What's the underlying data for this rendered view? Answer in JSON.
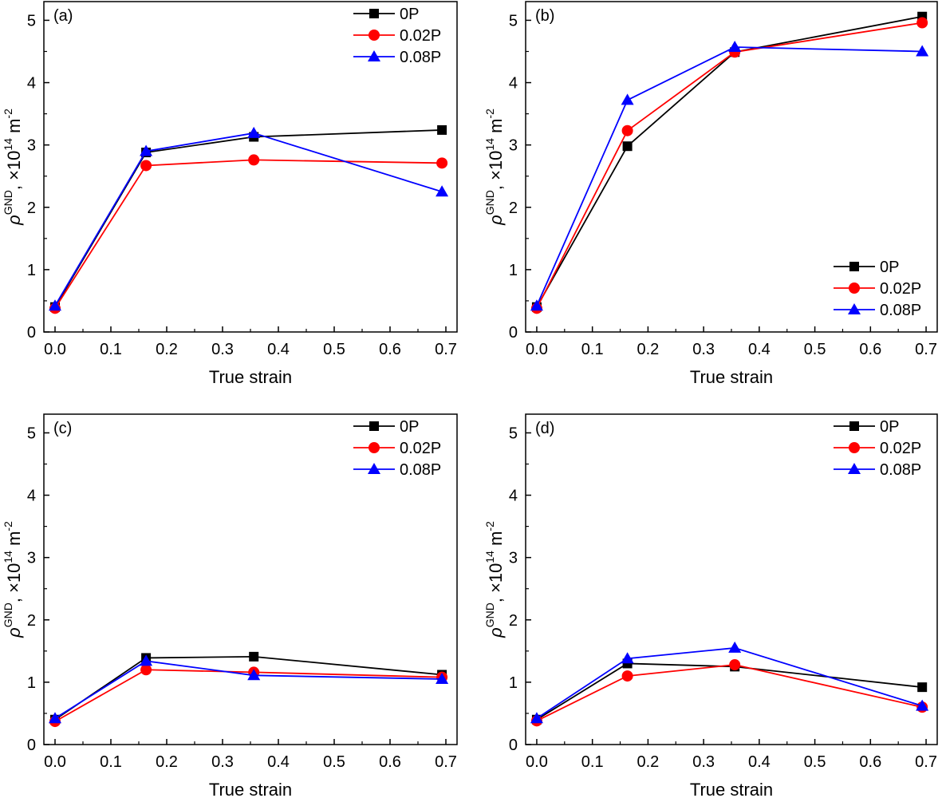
{
  "chart_data": [
    {
      "panel": "(a)",
      "type": "line",
      "xlabel": "True strain",
      "ylabel": {
        "symbol": "ρ",
        "superscript": "GND",
        "comma": ", ×10",
        "exponent": "14",
        "unit": " m",
        "unit_exp": "-2"
      },
      "xlim": [
        -0.02,
        0.72
      ],
      "ylim": [
        0,
        5.3
      ],
      "xticks": [
        "0.0",
        "0.1",
        "0.2",
        "0.3",
        "0.4",
        "0.5",
        "0.6",
        "0.7"
      ],
      "yticks": [
        "0",
        "1",
        "2",
        "3",
        "4",
        "5"
      ],
      "legend_position": "top-right",
      "series": [
        {
          "name": "0P",
          "marker": "square",
          "color": "#000000",
          "x": [
            0,
            0.163,
            0.356,
            0.693
          ],
          "y": [
            0.4,
            2.88,
            3.13,
            3.24
          ]
        },
        {
          "name": "0.02P",
          "marker": "circle",
          "color": "#ff0000",
          "x": [
            0,
            0.163,
            0.356,
            0.693
          ],
          "y": [
            0.38,
            2.67,
            2.76,
            2.71
          ]
        },
        {
          "name": "0.08P",
          "marker": "triangle",
          "color": "#0000ff",
          "x": [
            0,
            0.163,
            0.356,
            0.693
          ],
          "y": [
            0.42,
            2.9,
            3.19,
            2.25
          ]
        }
      ]
    },
    {
      "panel": "(b)",
      "type": "line",
      "xlabel": "True strain",
      "ylabel": {
        "symbol": "ρ",
        "superscript": "GND",
        "comma": ", ×10",
        "exponent": "14",
        "unit": " m",
        "unit_exp": "-2"
      },
      "xlim": [
        -0.02,
        0.72
      ],
      "ylim": [
        0,
        5.3
      ],
      "xticks": [
        "0.0",
        "0.1",
        "0.2",
        "0.3",
        "0.4",
        "0.5",
        "0.6",
        "0.7"
      ],
      "yticks": [
        "0",
        "1",
        "2",
        "3",
        "4",
        "5"
      ],
      "legend_position": "bottom-right",
      "series": [
        {
          "name": "0P",
          "marker": "square",
          "color": "#000000",
          "x": [
            0,
            0.163,
            0.356,
            0.693
          ],
          "y": [
            0.4,
            2.98,
            4.49,
            5.06
          ]
        },
        {
          "name": "0.02P",
          "marker": "circle",
          "color": "#ff0000",
          "x": [
            0,
            0.163,
            0.356,
            0.693
          ],
          "y": [
            0.38,
            3.23,
            4.49,
            4.96
          ]
        },
        {
          "name": "0.08P",
          "marker": "triangle",
          "color": "#0000ff",
          "x": [
            0,
            0.163,
            0.356,
            0.693
          ],
          "y": [
            0.42,
            3.72,
            4.57,
            4.5
          ]
        }
      ]
    },
    {
      "panel": "(c)",
      "type": "line",
      "xlabel": "True strain",
      "ylabel": {
        "symbol": "ρ",
        "superscript": "GND",
        "comma": ", ×10",
        "exponent": "14",
        "unit": " m",
        "unit_exp": "-2"
      },
      "xlim": [
        -0.02,
        0.72
      ],
      "ylim": [
        0,
        5.3
      ],
      "xticks": [
        "0.0",
        "0.1",
        "0.2",
        "0.3",
        "0.4",
        "0.5",
        "0.6",
        "0.7"
      ],
      "yticks": [
        "0",
        "1",
        "2",
        "3",
        "4",
        "5"
      ],
      "legend_position": "top-right",
      "series": [
        {
          "name": "0P",
          "marker": "square",
          "color": "#000000",
          "x": [
            0,
            0.163,
            0.356,
            0.693
          ],
          "y": [
            0.4,
            1.39,
            1.41,
            1.12
          ]
        },
        {
          "name": "0.02P",
          "marker": "circle",
          "color": "#ff0000",
          "x": [
            0,
            0.163,
            0.356,
            0.693
          ],
          "y": [
            0.37,
            1.2,
            1.16,
            1.08
          ]
        },
        {
          "name": "0.08P",
          "marker": "triangle",
          "color": "#0000ff",
          "x": [
            0,
            0.163,
            0.356,
            0.693
          ],
          "y": [
            0.42,
            1.34,
            1.11,
            1.05
          ]
        }
      ]
    },
    {
      "panel": "(d)",
      "type": "line",
      "xlabel": "True strain",
      "ylabel": {
        "symbol": "ρ",
        "superscript": "GND",
        "comma": ", ×10",
        "exponent": "14",
        "unit": " m",
        "unit_exp": "-2"
      },
      "xlim": [
        -0.02,
        0.72
      ],
      "ylim": [
        0,
        5.3
      ],
      "xticks": [
        "0.0",
        "0.1",
        "0.2",
        "0.3",
        "0.4",
        "0.5",
        "0.6",
        "0.7"
      ],
      "yticks": [
        "0",
        "1",
        "2",
        "3",
        "4",
        "5"
      ],
      "legend_position": "top-right",
      "series": [
        {
          "name": "0P",
          "marker": "square",
          "color": "#000000",
          "x": [
            0,
            0.163,
            0.356,
            0.693
          ],
          "y": [
            0.4,
            1.3,
            1.25,
            0.92
          ]
        },
        {
          "name": "0.02P",
          "marker": "circle",
          "color": "#ff0000",
          "x": [
            0,
            0.163,
            0.356,
            0.693
          ],
          "y": [
            0.38,
            1.1,
            1.28,
            0.6
          ]
        },
        {
          "name": "0.08P",
          "marker": "triangle",
          "color": "#0000ff",
          "x": [
            0,
            0.163,
            0.356,
            0.693
          ],
          "y": [
            0.42,
            1.38,
            1.55,
            0.62
          ]
        }
      ]
    }
  ]
}
